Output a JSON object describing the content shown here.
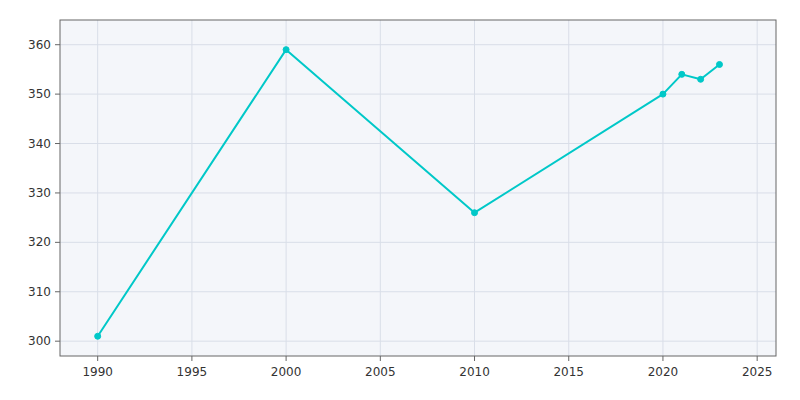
{
  "chart_data": {
    "type": "line",
    "x": [
      1990,
      2000,
      2010,
      2020,
      2021,
      2022,
      2023
    ],
    "values": [
      301,
      359,
      326,
      350,
      354,
      353,
      356
    ],
    "color": "#00C8C8",
    "marker": "circle",
    "xlim": [
      1988,
      2026
    ],
    "ylim": [
      297,
      365
    ],
    "xticks": [
      1990,
      1995,
      2000,
      2005,
      2010,
      2015,
      2020,
      2025
    ],
    "yticks": [
      300,
      310,
      320,
      330,
      340,
      350,
      360
    ],
    "grid": true
  }
}
